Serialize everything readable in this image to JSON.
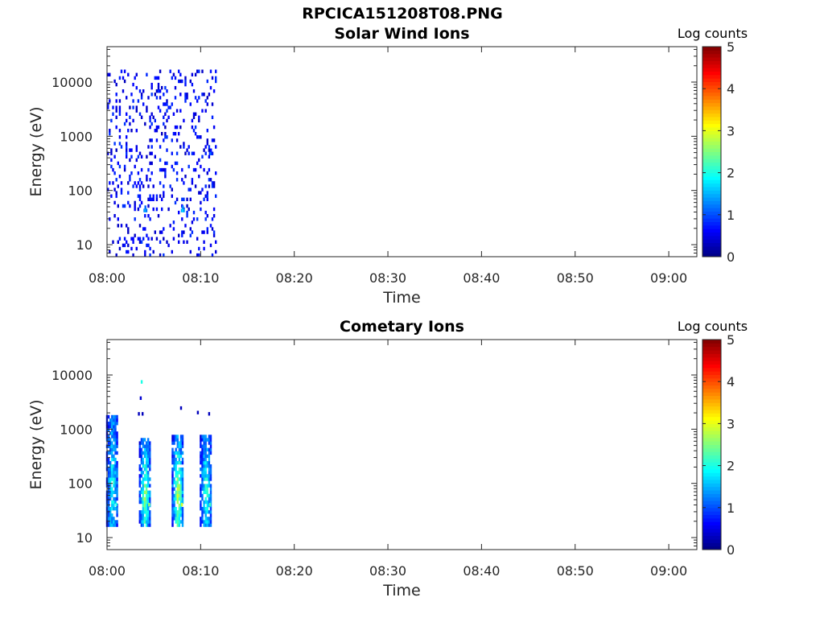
{
  "figure_title": "RPCICA151208T08.PNG",
  "colors": {
    "axis": "#262626",
    "background": "#ffffff",
    "colormap": "jet",
    "colormap_stops": [
      "#00007f",
      "#0000ff",
      "#007fff",
      "#00ffff",
      "#7fff7f",
      "#ffff00",
      "#ff7f00",
      "#ff0000",
      "#7f0000"
    ]
  },
  "chart_data": [
    {
      "type": "heatmap",
      "title": "Solar Wind Ions",
      "xlabel": "Time",
      "ylabel": "Energy (eV)",
      "yscale": "log",
      "ylim": [
        6,
        45000
      ],
      "xlim": [
        "08:00",
        "09:03"
      ],
      "x_ticks": [
        "08:00",
        "08:10",
        "08:20",
        "08:30",
        "08:40",
        "08:50",
        "09:00"
      ],
      "y_ticks": [
        "10",
        "100",
        "1000",
        "10000"
      ],
      "colorbar": {
        "label": "Log counts",
        "ticks": [
          "0",
          "1",
          "2",
          "3",
          "4",
          "5"
        ],
        "range": [
          0,
          5
        ]
      },
      "data_time_range": [
        "08:00",
        "08:12"
      ],
      "notable_cells": [
        {
          "time": "08:04",
          "energy_eV": 40,
          "log_counts": 1.6
        },
        {
          "time": "08:08",
          "energy_eV": 40,
          "log_counts": 1.8
        },
        {
          "time": "08:11",
          "energy_eV": 450,
          "log_counts": 1.2
        }
      ],
      "background_level": 0.3
    },
    {
      "type": "heatmap",
      "title": "Cometary Ions",
      "xlabel": "Time",
      "ylabel": "Energy (eV)",
      "yscale": "log",
      "ylim": [
        6,
        45000
      ],
      "xlim": [
        "08:00",
        "09:03"
      ],
      "x_ticks": [
        "08:00",
        "08:10",
        "08:20",
        "08:30",
        "08:40",
        "08:50",
        "09:00"
      ],
      "y_ticks": [
        "10",
        "100",
        "1000",
        "10000"
      ],
      "colorbar": {
        "label": "Log counts",
        "ticks": [
          "0",
          "1",
          "2",
          "3",
          "4",
          "5"
        ],
        "range": [
          0,
          5
        ]
      },
      "data_time_range": [
        "08:00",
        "08:12"
      ],
      "bursts": [
        {
          "time": "08:00.5",
          "energy_range_eV": [
            15,
            1700
          ],
          "peak_log_counts": 2.0
        },
        {
          "time": "08:04",
          "energy_range_eV": [
            15,
            600
          ],
          "peak_log_counts": 2.6
        },
        {
          "time": "08:07.5",
          "energy_range_eV": [
            15,
            700
          ],
          "peak_log_counts": 2.9
        },
        {
          "time": "08:10.5",
          "energy_range_eV": [
            15,
            750
          ],
          "peak_log_counts": 2.2
        }
      ]
    }
  ]
}
